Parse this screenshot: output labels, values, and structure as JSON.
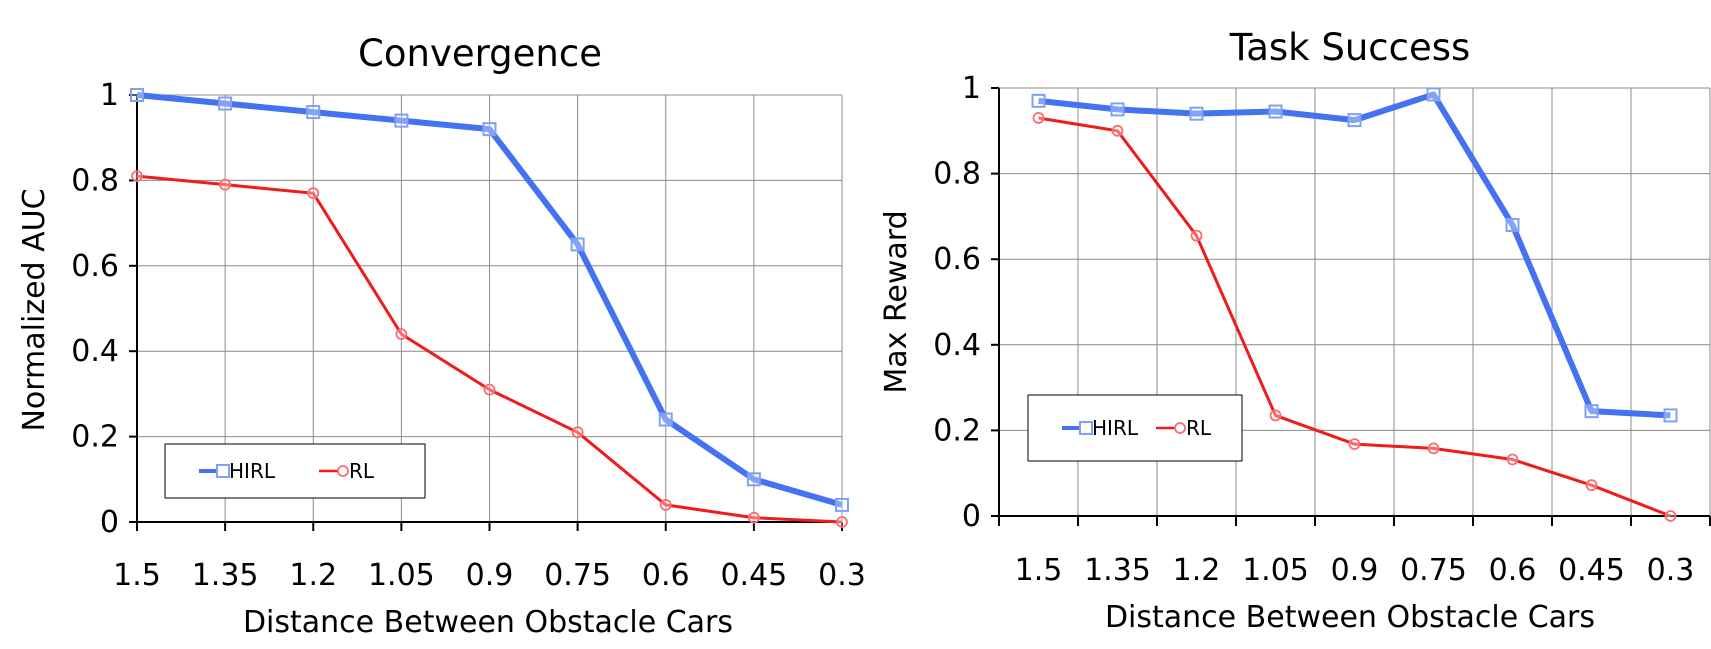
{
  "chart_data": [
    {
      "type": "line",
      "title": "Convergence",
      "xlabel": "Distance Between Obstacle Cars",
      "ylabel": "Normalized AUC",
      "categories": [
        "1.5",
        "1.35",
        "1.2",
        "1.05",
        "0.9",
        "0.75",
        "0.6",
        "0.45",
        "0.3"
      ],
      "ylim": [
        0,
        1
      ],
      "yticks": [
        "0",
        "0.2",
        "0.4",
        "0.6",
        "0.8",
        "1"
      ],
      "grid": true,
      "legend_position": "bottom-left",
      "series": [
        {
          "name": "HIRL",
          "color": "#4472f0",
          "marker": "square",
          "values": [
            1.0,
            0.98,
            0.96,
            0.94,
            0.92,
            0.65,
            0.24,
            0.1,
            0.04
          ]
        },
        {
          "name": "RL",
          "color": "#ee1c1c",
          "marker": "circle",
          "values": [
            0.81,
            0.79,
            0.77,
            0.44,
            0.31,
            0.21,
            0.04,
            0.01,
            0.0
          ]
        }
      ]
    },
    {
      "type": "line",
      "title": "Task Success",
      "xlabel": "Distance Between Obstacle Cars",
      "ylabel": "Max Reward",
      "categories": [
        "1.5",
        "1.35",
        "1.2",
        "1.05",
        "0.9",
        "0.75",
        "0.6",
        "0.45",
        "0.3"
      ],
      "ylim": [
        0,
        1
      ],
      "yticks": [
        "0",
        "0.2",
        "0.4",
        "0.6",
        "0.8",
        "1"
      ],
      "grid": true,
      "legend_position": "bottom-left",
      "series": [
        {
          "name": "HIRL",
          "color": "#4472f0",
          "marker": "square",
          "values": [
            0.97,
            0.95,
            0.94,
            0.945,
            0.925,
            0.985,
            0.68,
            0.245,
            0.235
          ]
        },
        {
          "name": "RL",
          "color": "#ee1c1c",
          "marker": "circle",
          "values": [
            0.93,
            0.9,
            0.655,
            0.235,
            0.168,
            0.158,
            0.132,
            0.072,
            0.0
          ]
        }
      ]
    }
  ]
}
